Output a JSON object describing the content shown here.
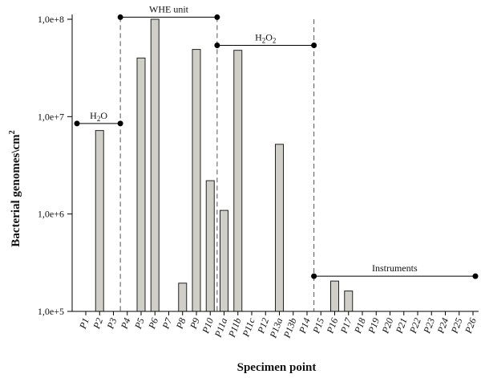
{
  "chart_data": {
    "type": "bar",
    "xlabel": "Specimen point",
    "ylabel_main": "Bacterial genomes\\cm",
    "ylabel_sup": "2",
    "yscale": "log",
    "ylim": [
      100000,
      100000000
    ],
    "yticks": [
      {
        "value": 100000,
        "label": "1,0e+5"
      },
      {
        "value": 1000000,
        "label": "1,0e+6"
      },
      {
        "value": 10000000,
        "label": "1,0e+7"
      },
      {
        "value": 100000000,
        "label": "1,0e+8"
      }
    ],
    "categories": [
      "P1",
      "P2",
      "P3",
      "P4",
      "P5",
      "P6",
      "P7",
      "P8",
      "P9",
      "P10",
      "P11a",
      "P11b",
      "P11c",
      "P12",
      "P13a",
      "P13b",
      "P14",
      "P15",
      "P16",
      "P17",
      "P18",
      "P19",
      "P20",
      "P21",
      "P22",
      "P23",
      "P24",
      "P25",
      "P26"
    ],
    "values": [
      null,
      7200000,
      null,
      null,
      40000000,
      100000000,
      null,
      195000,
      49000000,
      2200000,
      1090000,
      48000000,
      null,
      null,
      5200000,
      null,
      null,
      null,
      205000,
      162000,
      null,
      null,
      null,
      null,
      null,
      null,
      null,
      null,
      null
    ],
    "annotations": [
      {
        "label": "H",
        "sub": "2",
        "label_end": "O",
        "from": "P1",
        "to": "P3",
        "y": 8500000
      },
      {
        "label": "WHE unit",
        "from": "P3",
        "to": "P10",
        "y": 105000000
      },
      {
        "label": "H",
        "sub": "2",
        "label_mid": "O",
        "sub2": "2",
        "from": "P10",
        "to": "P14",
        "y": 54000000
      },
      {
        "label": "Instruments",
        "from": "P14",
        "to": "P26",
        "y": 230000
      }
    ],
    "dividers": [
      "P3",
      "P10",
      "P14"
    ],
    "colors": {
      "bar": "#cfcfc8",
      "bar_edge": "#222222"
    }
  }
}
